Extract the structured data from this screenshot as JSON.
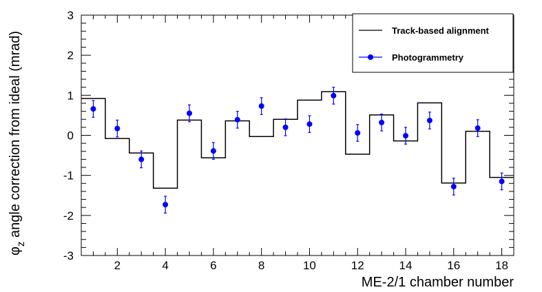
{
  "chart_data": {
    "type": "scatter",
    "title": "",
    "xlabel": "ME-2/1 chamber number",
    "ylabel_main": "φ",
    "ylabel_sub": "z",
    "ylabel_rest": " angle correction from ideal (mrad)",
    "xlim": [
      0.5,
      18.5
    ],
    "ylim": [
      -3,
      3
    ],
    "x_ticks": [
      2,
      4,
      6,
      8,
      10,
      12,
      14,
      16,
      18
    ],
    "x_tick_labels": [
      "2",
      "4",
      "6",
      "8",
      "10",
      "12",
      "14",
      "16",
      "18"
    ],
    "y_ticks": [
      -3,
      -2,
      -1,
      0,
      1,
      2,
      3
    ],
    "y_tick_labels": [
      "-3",
      "-2",
      "-1",
      "0",
      "1",
      "2",
      "3"
    ],
    "grid": false,
    "legend_position": "top-right",
    "series": [
      {
        "name": "Track-based alignment",
        "style": "step",
        "color": "#000000",
        "x": [
          1,
          2,
          3,
          4,
          5,
          6,
          7,
          8,
          9,
          10,
          11,
          12,
          13,
          14,
          15,
          16,
          17,
          18
        ],
        "y": [
          0.92,
          -0.08,
          -0.44,
          -1.32,
          0.38,
          -0.56,
          0.36,
          -0.03,
          0.4,
          0.88,
          1.09,
          -0.47,
          0.51,
          -0.14,
          0.81,
          -1.19,
          0.1,
          -1.05
        ]
      },
      {
        "name": "Photogrammetry",
        "style": "points",
        "color": "#0000ff",
        "x": [
          1,
          2,
          3,
          4,
          5,
          6,
          7,
          8,
          9,
          10,
          11,
          12,
          13,
          14,
          15,
          16,
          17,
          18
        ],
        "y": [
          0.66,
          0.17,
          -0.6,
          -1.73,
          0.55,
          -0.39,
          0.39,
          0.73,
          0.2,
          0.28,
          0.99,
          0.06,
          0.32,
          -0.01,
          0.37,
          -1.28,
          0.18,
          -1.15
        ],
        "yerr": [
          0.21,
          0.21,
          0.21,
          0.21,
          0.21,
          0.21,
          0.21,
          0.21,
          0.21,
          0.21,
          0.21,
          0.21,
          0.21,
          0.21,
          0.21,
          0.21,
          0.21,
          0.21
        ]
      }
    ]
  }
}
